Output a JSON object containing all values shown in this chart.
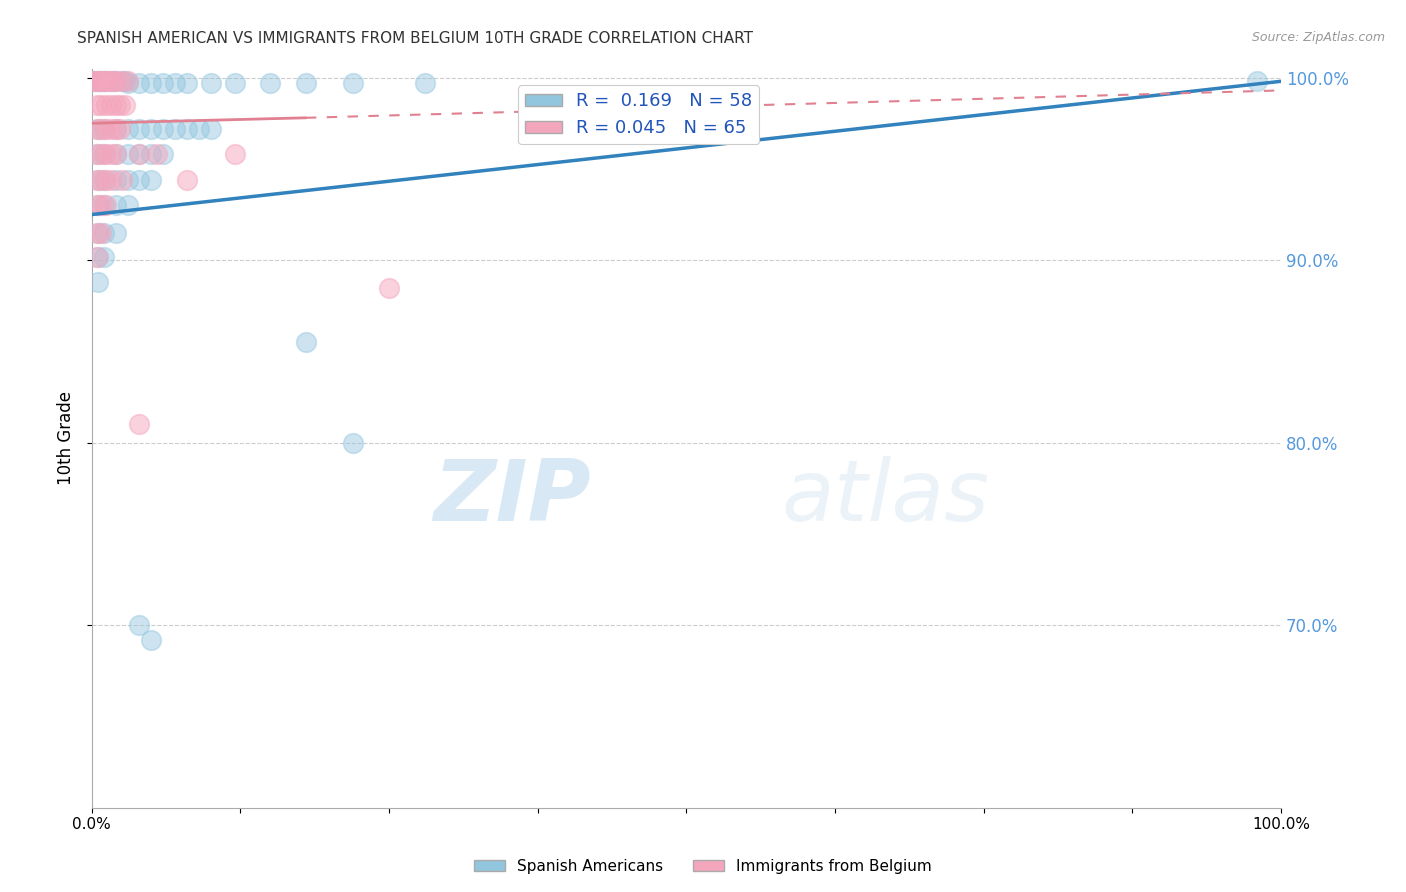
{
  "title": "SPANISH AMERICAN VS IMMIGRANTS FROM BELGIUM 10TH GRADE CORRELATION CHART",
  "source": "Source: ZipAtlas.com",
  "ylabel": "10th Grade",
  "xlim": [
    0.0,
    1.0
  ],
  "ylim": [
    0.6,
    1.005
  ],
  "yticks": [
    0.7,
    0.8,
    0.9,
    1.0
  ],
  "ytick_labels": [
    "70.0%",
    "80.0%",
    "90.0%",
    "100.0%"
  ],
  "r_blue": 0.169,
  "n_blue": 58,
  "r_pink": 0.045,
  "n_pink": 65,
  "legend_label_blue": "Spanish Americans",
  "legend_label_pink": "Immigrants from Belgium",
  "color_blue": "#92c5de",
  "color_pink": "#f4a6bd",
  "trendline_blue_color": "#3182bd",
  "trendline_pink_color": "#e08090",
  "watermark_zip": "ZIP",
  "watermark_atlas": "atlas",
  "blue_trendline": [
    [
      0.0,
      0.925
    ],
    [
      1.0,
      0.998
    ]
  ],
  "pink_trendline_solid": [
    [
      0.0,
      0.975
    ],
    [
      0.18,
      0.978
    ]
  ],
  "pink_trendline_dash": [
    [
      0.18,
      0.978
    ],
    [
      1.0,
      0.993
    ]
  ],
  "blue_points": [
    [
      0.002,
      0.998
    ],
    [
      0.004,
      0.998
    ],
    [
      0.006,
      0.998
    ],
    [
      0.008,
      0.998
    ],
    [
      0.01,
      0.998
    ],
    [
      0.012,
      0.998
    ],
    [
      0.015,
      0.998
    ],
    [
      0.018,
      0.998
    ],
    [
      0.02,
      0.998
    ],
    [
      0.025,
      0.998
    ],
    [
      0.028,
      0.998
    ],
    [
      0.03,
      0.997
    ],
    [
      0.04,
      0.997
    ],
    [
      0.05,
      0.997
    ],
    [
      0.06,
      0.997
    ],
    [
      0.07,
      0.997
    ],
    [
      0.08,
      0.997
    ],
    [
      0.1,
      0.997
    ],
    [
      0.12,
      0.997
    ],
    [
      0.15,
      0.997
    ],
    [
      0.18,
      0.997
    ],
    [
      0.22,
      0.997
    ],
    [
      0.28,
      0.997
    ],
    [
      0.005,
      0.972
    ],
    [
      0.01,
      0.972
    ],
    [
      0.02,
      0.972
    ],
    [
      0.03,
      0.972
    ],
    [
      0.04,
      0.972
    ],
    [
      0.05,
      0.972
    ],
    [
      0.06,
      0.972
    ],
    [
      0.07,
      0.972
    ],
    [
      0.08,
      0.972
    ],
    [
      0.09,
      0.972
    ],
    [
      0.1,
      0.972
    ],
    [
      0.004,
      0.958
    ],
    [
      0.01,
      0.958
    ],
    [
      0.02,
      0.958
    ],
    [
      0.03,
      0.958
    ],
    [
      0.04,
      0.958
    ],
    [
      0.05,
      0.958
    ],
    [
      0.06,
      0.958
    ],
    [
      0.005,
      0.944
    ],
    [
      0.01,
      0.944
    ],
    [
      0.02,
      0.944
    ],
    [
      0.03,
      0.944
    ],
    [
      0.04,
      0.944
    ],
    [
      0.05,
      0.944
    ],
    [
      0.005,
      0.93
    ],
    [
      0.01,
      0.93
    ],
    [
      0.02,
      0.93
    ],
    [
      0.03,
      0.93
    ],
    [
      0.005,
      0.915
    ],
    [
      0.01,
      0.915
    ],
    [
      0.02,
      0.915
    ],
    [
      0.005,
      0.902
    ],
    [
      0.01,
      0.902
    ],
    [
      0.005,
      0.888
    ],
    [
      0.18,
      0.855
    ],
    [
      0.22,
      0.8
    ],
    [
      0.04,
      0.7
    ],
    [
      0.05,
      0.692
    ],
    [
      0.98,
      0.998
    ]
  ],
  "pink_points": [
    [
      0.002,
      0.998
    ],
    [
      0.004,
      0.998
    ],
    [
      0.006,
      0.998
    ],
    [
      0.008,
      0.998
    ],
    [
      0.01,
      0.998
    ],
    [
      0.012,
      0.998
    ],
    [
      0.015,
      0.998
    ],
    [
      0.018,
      0.998
    ],
    [
      0.02,
      0.998
    ],
    [
      0.025,
      0.998
    ],
    [
      0.03,
      0.998
    ],
    [
      0.004,
      0.985
    ],
    [
      0.008,
      0.985
    ],
    [
      0.012,
      0.985
    ],
    [
      0.016,
      0.985
    ],
    [
      0.02,
      0.985
    ],
    [
      0.024,
      0.985
    ],
    [
      0.028,
      0.985
    ],
    [
      0.004,
      0.972
    ],
    [
      0.008,
      0.972
    ],
    [
      0.012,
      0.972
    ],
    [
      0.016,
      0.972
    ],
    [
      0.02,
      0.972
    ],
    [
      0.024,
      0.972
    ],
    [
      0.004,
      0.958
    ],
    [
      0.008,
      0.958
    ],
    [
      0.012,
      0.958
    ],
    [
      0.016,
      0.958
    ],
    [
      0.02,
      0.958
    ],
    [
      0.04,
      0.958
    ],
    [
      0.004,
      0.944
    ],
    [
      0.008,
      0.944
    ],
    [
      0.012,
      0.944
    ],
    [
      0.016,
      0.944
    ],
    [
      0.025,
      0.944
    ],
    [
      0.004,
      0.93
    ],
    [
      0.008,
      0.93
    ],
    [
      0.012,
      0.93
    ],
    [
      0.004,
      0.915
    ],
    [
      0.008,
      0.915
    ],
    [
      0.004,
      0.902
    ],
    [
      0.055,
      0.958
    ],
    [
      0.08,
      0.944
    ],
    [
      0.25,
      0.885
    ],
    [
      0.12,
      0.958
    ],
    [
      0.04,
      0.81
    ]
  ]
}
